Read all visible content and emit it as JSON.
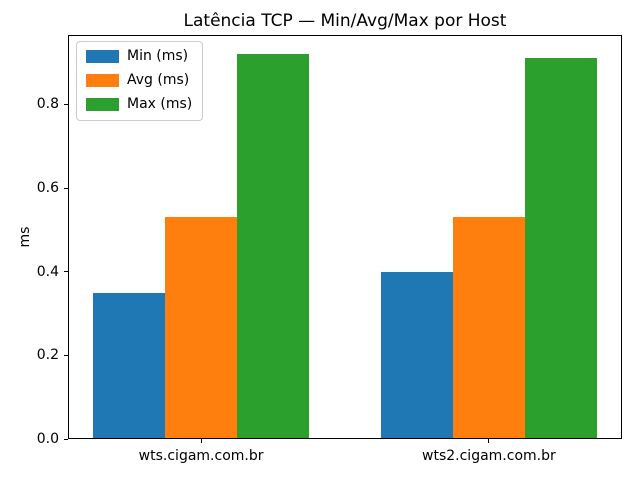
{
  "title": "Latência TCP — Min/Avg/Max por Host",
  "y_axis_label": "ms",
  "chart_data": {
    "type": "bar",
    "title": "Latência TCP — Min/Avg/Max por Host",
    "xlabel": "",
    "ylabel": "ms",
    "categories": [
      "wts.cigam.com.br",
      "wts2.cigam.com.br"
    ],
    "series": [
      {
        "name": "Min (ms)",
        "color": "#1f77b4",
        "values": [
          0.35,
          0.4
        ]
      },
      {
        "name": "Avg (ms)",
        "color": "#ff7f0e",
        "values": [
          0.53,
          0.53
        ]
      },
      {
        "name": "Max (ms)",
        "color": "#2ca02c",
        "values": [
          0.92,
          0.91
        ]
      }
    ],
    "ylim": [
      0,
      0.966
    ],
    "yticks": [
      0.0,
      0.2,
      0.4,
      0.6,
      0.8
    ],
    "ytick_labels": [
      "0.0",
      "0.2",
      "0.4",
      "0.6",
      "0.8"
    ],
    "grid": false,
    "legend_position": "upper left",
    "bar_width_fraction": 0.25,
    "background_color": "#ffffff",
    "spine_color": "#000000"
  }
}
